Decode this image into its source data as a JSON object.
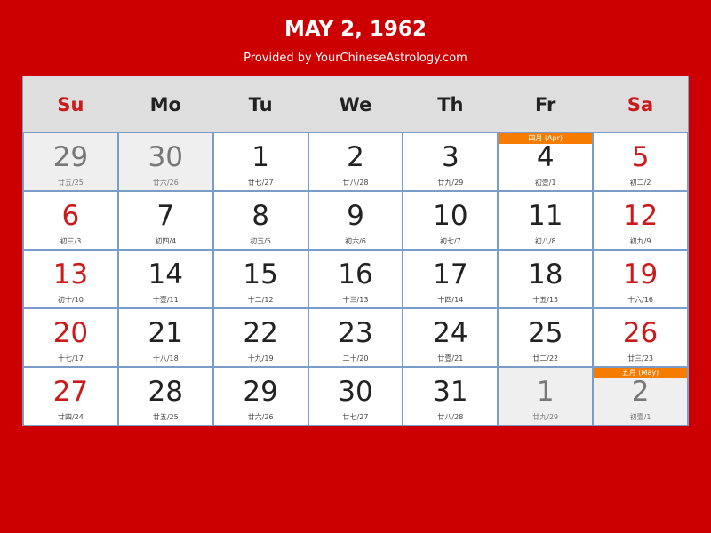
{
  "title": "MAY 2, 1962",
  "subtitle": "Provided by YourChineseAstrology.com",
  "colors": {
    "background": "#cc0000",
    "weekend": "#cc1a1a",
    "month_tag": "#f57c00"
  },
  "weekdays": [
    {
      "label": "Su",
      "red": true
    },
    {
      "label": "Mo"
    },
    {
      "label": "Tu"
    },
    {
      "label": "We"
    },
    {
      "label": "Th"
    },
    {
      "label": "Fr"
    },
    {
      "label": "Sa",
      "red": true
    }
  ],
  "weeks": [
    [
      {
        "day": "29",
        "lunar": "廿五/25",
        "muted": true
      },
      {
        "day": "30",
        "lunar": "廿六/26",
        "muted": true
      },
      {
        "day": "1",
        "lunar": "廿七/27"
      },
      {
        "day": "2",
        "lunar": "廿八/28"
      },
      {
        "day": "3",
        "lunar": "廿九/29"
      },
      {
        "day": "4",
        "lunar": "初壹/1",
        "tag": "四月 (Apr)"
      },
      {
        "day": "5",
        "lunar": "初二/2",
        "red": true
      }
    ],
    [
      {
        "day": "6",
        "lunar": "初三/3",
        "red": true
      },
      {
        "day": "7",
        "lunar": "初四/4"
      },
      {
        "day": "8",
        "lunar": "初五/5"
      },
      {
        "day": "9",
        "lunar": "初六/6"
      },
      {
        "day": "10",
        "lunar": "初七/7"
      },
      {
        "day": "11",
        "lunar": "初八/8"
      },
      {
        "day": "12",
        "lunar": "初九/9",
        "red": true
      }
    ],
    [
      {
        "day": "13",
        "lunar": "初十/10",
        "red": true
      },
      {
        "day": "14",
        "lunar": "十壹/11"
      },
      {
        "day": "15",
        "lunar": "十二/12"
      },
      {
        "day": "16",
        "lunar": "十三/13"
      },
      {
        "day": "17",
        "lunar": "十四/14"
      },
      {
        "day": "18",
        "lunar": "十五/15"
      },
      {
        "day": "19",
        "lunar": "十六/16",
        "red": true
      }
    ],
    [
      {
        "day": "20",
        "lunar": "十七/17",
        "red": true
      },
      {
        "day": "21",
        "lunar": "十八/18"
      },
      {
        "day": "22",
        "lunar": "十九/19"
      },
      {
        "day": "23",
        "lunar": "二十/20"
      },
      {
        "day": "24",
        "lunar": "廿壹/21"
      },
      {
        "day": "25",
        "lunar": "廿二/22"
      },
      {
        "day": "26",
        "lunar": "廿三/23",
        "red": true
      }
    ],
    [
      {
        "day": "27",
        "lunar": "廿四/24",
        "red": true
      },
      {
        "day": "28",
        "lunar": "廿五/25"
      },
      {
        "day": "29",
        "lunar": "廿六/26"
      },
      {
        "day": "30",
        "lunar": "廿七/27"
      },
      {
        "day": "31",
        "lunar": "廿八/28"
      },
      {
        "day": "1",
        "lunar": "廿九/29",
        "muted": true
      },
      {
        "day": "2",
        "lunar": "初壹/1",
        "muted": true,
        "red": true,
        "tag": "五月 (May)"
      }
    ]
  ]
}
